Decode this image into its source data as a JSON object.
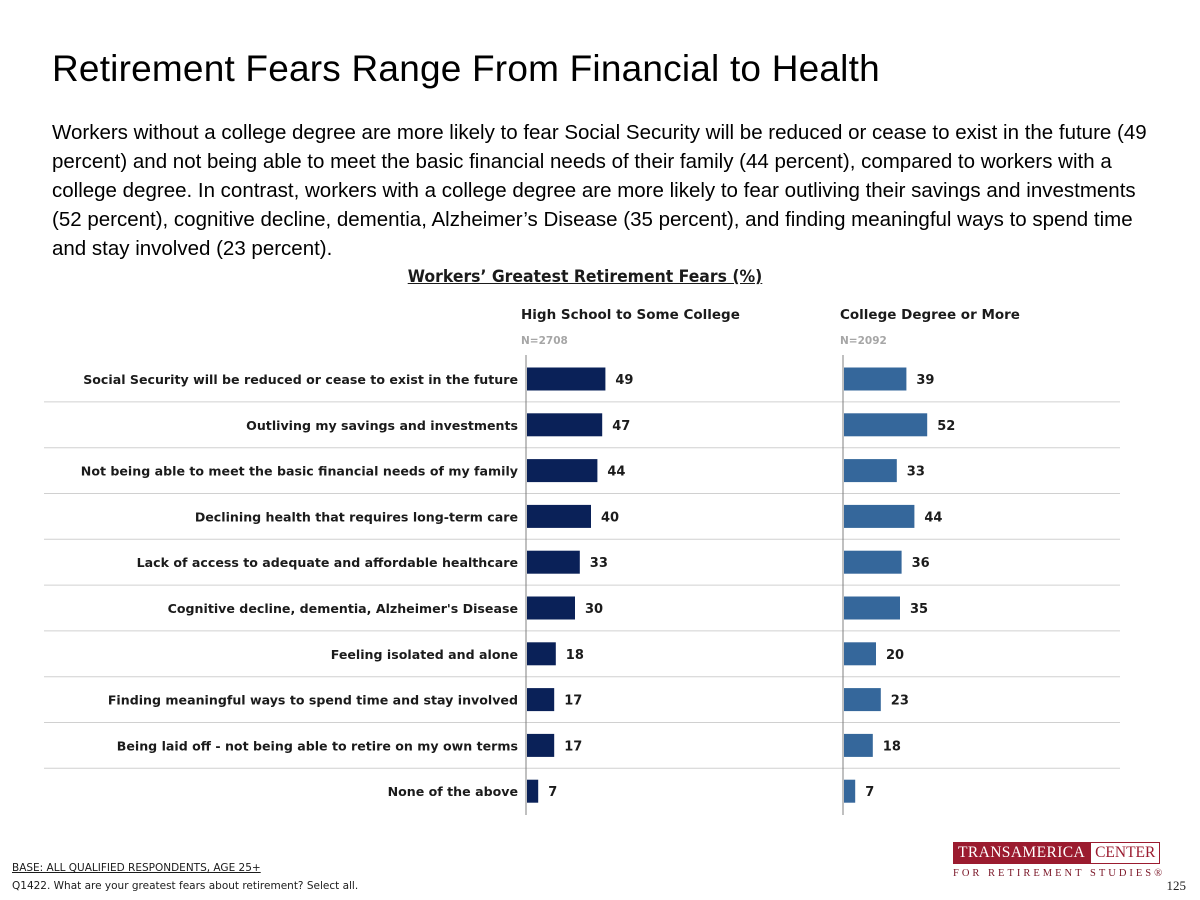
{
  "title": "Retirement Fears Range From Financial to Health",
  "summary": "Workers without a college degree are more likely to fear Social Security will be reduced or cease to exist in the future (49 percent) and not being able to meet the basic financial needs of their family (44 percent), compared to workers with a college degree. In contrast, workers with a college degree are more likely to fear outliving their savings and investments (52 percent), cognitive decline, dementia, Alzheimer’s Disease (35 percent), and finding meaningful ways to spend time and stay involved (23 percent).",
  "chart_data": {
    "type": "bar",
    "orientation": "horizontal",
    "title": "Workers’ Greatest Retirement Fears (%)",
    "categories": [
      "Social Security will be reduced or cease to exist in the future",
      "Outliving my savings and investments",
      "Not being able to meet the basic financial needs of my family",
      "Declining health that requires long-term care",
      "Lack of access to adequate and affordable healthcare",
      "Cognitive decline, dementia, Alzheimer's Disease",
      "Feeling isolated and alone",
      "Finding meaningful ways to spend time and stay involved",
      "Being laid off - not being able to retire on my own terms",
      "None of the above"
    ],
    "series": [
      {
        "name": "High School to Some College",
        "n": "N=2708",
        "color": "#0a2158",
        "values": [
          49,
          47,
          44,
          40,
          33,
          30,
          18,
          17,
          17,
          7
        ]
      },
      {
        "name": "College Degree or More",
        "n": "N=2092",
        "color": "#35679b",
        "values": [
          39,
          52,
          33,
          44,
          36,
          35,
          20,
          23,
          18,
          7
        ]
      }
    ],
    "xlim": [
      0,
      100
    ],
    "grid": false,
    "legend": "none"
  },
  "footer": {
    "base": "BASE: ALL QUALIFIED RESPONDENTS, AGE 25+",
    "question": "Q1422. What are your greatest fears about retirement? Select all."
  },
  "logo": {
    "word1": "TRANSAMERICA",
    "word2": "CENTER",
    "tagline": "FOR RETIREMENT STUDIES®"
  },
  "page_number": "125"
}
